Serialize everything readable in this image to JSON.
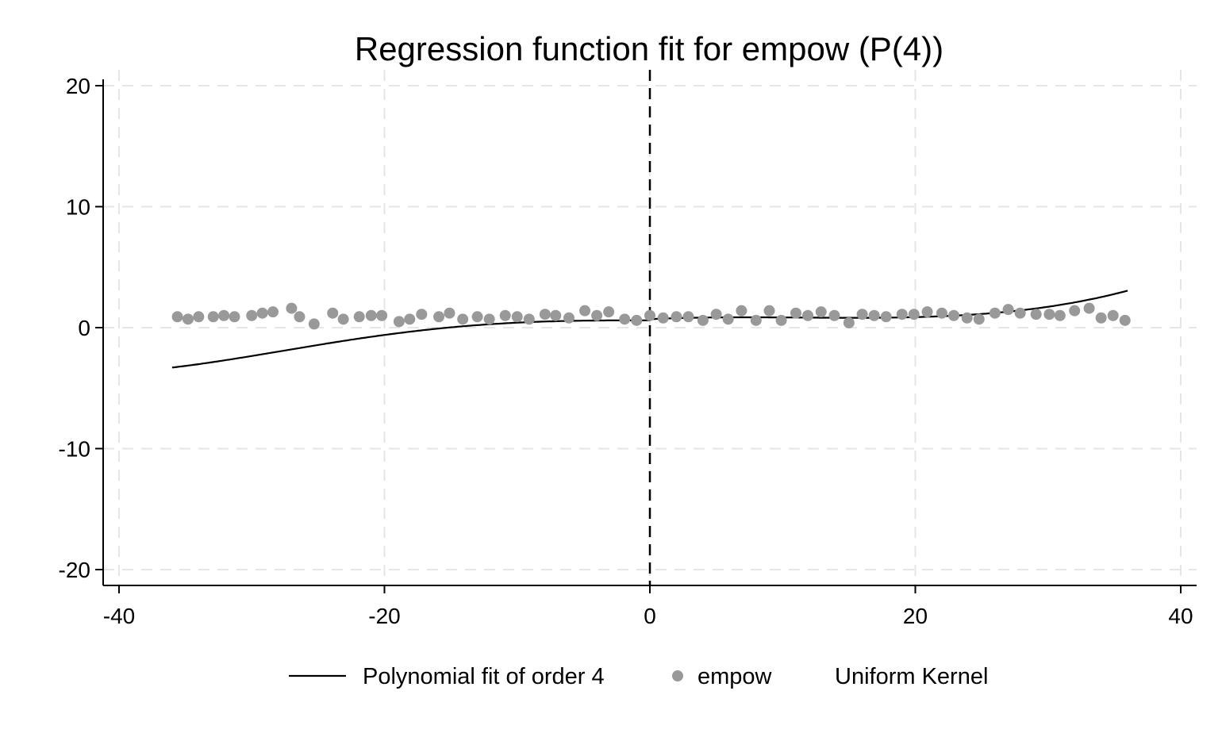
{
  "chart_data": {
    "type": "scatter",
    "title": "Regression function fit for empow (P(4))",
    "xlabel": "",
    "ylabel": "",
    "xlim": [
      -41,
      41
    ],
    "ylim": [
      -21.5,
      21
    ],
    "xticks": [
      -40,
      -20,
      0,
      20,
      40
    ],
    "xtick_labels": [
      "-40",
      "-20",
      "0",
      "20",
      "40"
    ],
    "yticks": [
      -20,
      -10,
      0,
      10,
      20
    ],
    "ytick_labels": [
      "-20",
      "-10",
      "0",
      "10",
      "20"
    ],
    "grid": true,
    "cutoff": 0,
    "legend_position": "bottom",
    "series": [
      {
        "name": "Polynomial fit of order 4",
        "type": "line",
        "color": "#000000",
        "left": {
          "x_range": [
            -36,
            0
          ],
          "coef": [
            0.6,
            -0.0003,
            5e-05,
            0.00024,
            4.3e-06
          ]
        },
        "right": {
          "x_range": [
            0,
            36
          ],
          "coef": [
            0.7,
            0.05,
            -0.005,
            0.00014,
            3e-07
          ]
        }
      },
      {
        "name": "empow",
        "type": "scatter",
        "color": "#999999",
        "x": [
          -35.6,
          -34.8,
          -34.0,
          -32.9,
          -32.1,
          -31.3,
          -30.0,
          -29.2,
          -28.4,
          -27.0,
          -26.4,
          -25.3,
          -23.9,
          -23.1,
          -21.9,
          -21.0,
          -20.2,
          -18.9,
          -18.1,
          -17.2,
          -15.9,
          -15.1,
          -14.1,
          -13.0,
          -12.1,
          -10.9,
          -10.0,
          -9.1,
          -7.9,
          -7.1,
          -6.1,
          -4.9,
          -4.0,
          -3.1,
          -1.9,
          -1.0,
          0.0,
          1.0,
          2.0,
          2.9,
          4.0,
          5.0,
          5.9,
          6.9,
          8.0,
          9.0,
          9.9,
          11.0,
          11.9,
          12.9,
          13.9,
          15.0,
          16.0,
          16.9,
          17.8,
          19.0,
          19.9,
          20.9,
          22.0,
          22.9,
          23.9,
          24.8,
          26.0,
          27.0,
          27.9,
          29.1,
          30.1,
          30.9,
          32.0,
          33.1,
          34.0,
          34.9,
          35.8
        ],
        "y": [
          0.9,
          0.7,
          0.9,
          0.9,
          1.0,
          0.9,
          1.0,
          1.2,
          1.3,
          1.6,
          0.9,
          0.3,
          1.2,
          0.7,
          0.9,
          1.0,
          1.0,
          0.5,
          0.7,
          1.1,
          0.9,
          1.2,
          0.7,
          0.9,
          0.7,
          1.0,
          0.9,
          0.7,
          1.1,
          1.0,
          0.8,
          1.4,
          1.0,
          1.3,
          0.7,
          0.6,
          1.0,
          0.8,
          0.9,
          0.9,
          0.6,
          1.1,
          0.7,
          1.4,
          0.6,
          1.4,
          0.6,
          1.2,
          1.0,
          1.3,
          1.0,
          0.4,
          1.1,
          1.0,
          0.9,
          1.1,
          1.1,
          1.3,
          1.2,
          1.0,
          0.8,
          0.7,
          1.2,
          1.5,
          1.2,
          1.1,
          1.1,
          1.0,
          1.4,
          1.6,
          0.8,
          1.0,
          0.6
        ]
      }
    ],
    "legend": [
      {
        "label": "Polynomial fit of order 4",
        "marker": "line"
      },
      {
        "label": "empow",
        "marker": "dot"
      },
      {
        "label": "Uniform Kernel",
        "marker": "none"
      }
    ]
  }
}
